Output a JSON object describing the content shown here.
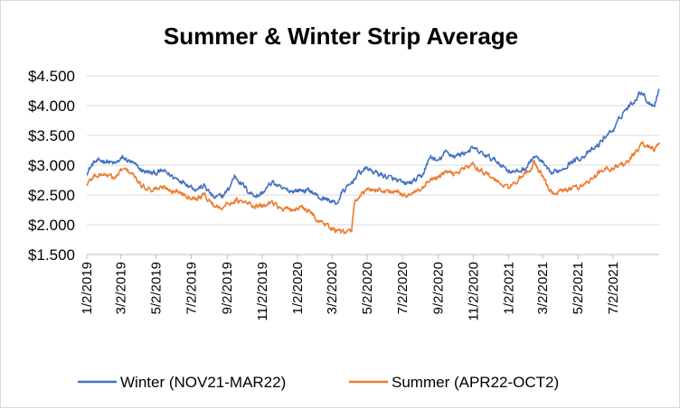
{
  "chart_data": {
    "type": "line",
    "title": "Summer & Winter Strip Average",
    "xlabel": "",
    "ylabel": "",
    "x_range": [
      "2019-01-02",
      "2021-09-20"
    ],
    "ylim": [
      1.5,
      4.5
    ],
    "y_ticks": [
      "$1.500",
      "$2.000",
      "$2.500",
      "$3.000",
      "$3.500",
      "$4.000",
      "$4.500"
    ],
    "x_ticks": [
      "1/2/2019",
      "3/2/2019",
      "5/2/2019",
      "7/2/2019",
      "9/2/2019",
      "11/2/2019",
      "1/2/2020",
      "3/2/2020",
      "5/2/2020",
      "7/2/2020",
      "9/2/2020",
      "11/2/2020",
      "1/2/2021",
      "3/2/2021",
      "5/2/2021",
      "7/2/2021"
    ],
    "grid": "horizontal",
    "legend_position": "bottom",
    "series": [
      {
        "name": "Winter (NOV21-MAR22)",
        "color": "#4472C4",
        "points": [
          [
            "2019-01-02",
            2.88
          ],
          [
            "2019-01-15",
            3.05
          ],
          [
            "2019-02-01",
            3.08
          ],
          [
            "2019-02-20",
            3.02
          ],
          [
            "2019-03-05",
            3.12
          ],
          [
            "2019-03-20",
            3.05
          ],
          [
            "2019-04-05",
            2.92
          ],
          [
            "2019-04-25",
            2.86
          ],
          [
            "2019-05-15",
            2.9
          ],
          [
            "2019-06-01",
            2.8
          ],
          [
            "2019-06-20",
            2.72
          ],
          [
            "2019-07-10",
            2.6
          ],
          [
            "2019-07-25",
            2.65
          ],
          [
            "2019-08-10",
            2.45
          ],
          [
            "2019-08-25",
            2.48
          ],
          [
            "2019-09-05",
            2.6
          ],
          [
            "2019-09-15",
            2.82
          ],
          [
            "2019-09-25",
            2.72
          ],
          [
            "2019-10-10",
            2.55
          ],
          [
            "2019-10-25",
            2.48
          ],
          [
            "2019-11-05",
            2.56
          ],
          [
            "2019-11-20",
            2.72
          ],
          [
            "2019-12-05",
            2.6
          ],
          [
            "2019-12-20",
            2.57
          ],
          [
            "2020-01-10",
            2.58
          ],
          [
            "2020-01-25",
            2.57
          ],
          [
            "2020-02-10",
            2.45
          ],
          [
            "2020-02-25",
            2.42
          ],
          [
            "2020-03-10",
            2.35
          ],
          [
            "2020-03-20",
            2.55
          ],
          [
            "2020-04-01",
            2.65
          ],
          [
            "2020-04-15",
            2.85
          ],
          [
            "2020-05-01",
            2.95
          ],
          [
            "2020-05-15",
            2.88
          ],
          [
            "2020-06-01",
            2.82
          ],
          [
            "2020-06-20",
            2.75
          ],
          [
            "2020-07-05",
            2.68
          ],
          [
            "2020-07-20",
            2.72
          ],
          [
            "2020-08-05",
            2.82
          ],
          [
            "2020-08-20",
            3.15
          ],
          [
            "2020-09-01",
            3.05
          ],
          [
            "2020-09-15",
            3.22
          ],
          [
            "2020-10-01",
            3.15
          ],
          [
            "2020-10-15",
            3.2
          ],
          [
            "2020-11-01",
            3.28
          ],
          [
            "2020-11-15",
            3.2
          ],
          [
            "2020-12-01",
            3.12
          ],
          [
            "2020-12-15",
            3.05
          ],
          [
            "2021-01-01",
            2.92
          ],
          [
            "2021-01-15",
            2.88
          ],
          [
            "2021-02-01",
            2.95
          ],
          [
            "2021-02-15",
            3.15
          ],
          [
            "2021-03-01",
            3.05
          ],
          [
            "2021-03-15",
            2.85
          ],
          [
            "2021-04-01",
            2.92
          ],
          [
            "2021-04-20",
            3.05
          ],
          [
            "2021-05-05",
            3.12
          ],
          [
            "2021-05-20",
            3.2
          ],
          [
            "2021-06-05",
            3.32
          ],
          [
            "2021-06-20",
            3.5
          ],
          [
            "2021-07-05",
            3.62
          ],
          [
            "2021-07-20",
            3.9
          ],
          [
            "2021-08-05",
            4.05
          ],
          [
            "2021-08-20",
            4.25
          ],
          [
            "2021-09-01",
            4.05
          ],
          [
            "2021-09-12",
            4.02
          ],
          [
            "2021-09-20",
            4.28
          ]
        ]
      },
      {
        "name": "Summer  (APR22-OCT2)",
        "color": "#ED7D31",
        "points": [
          [
            "2019-01-02",
            2.68
          ],
          [
            "2019-01-15",
            2.82
          ],
          [
            "2019-02-01",
            2.85
          ],
          [
            "2019-02-20",
            2.78
          ],
          [
            "2019-03-05",
            2.93
          ],
          [
            "2019-03-20",
            2.88
          ],
          [
            "2019-04-05",
            2.66
          ],
          [
            "2019-04-25",
            2.6
          ],
          [
            "2019-05-15",
            2.62
          ],
          [
            "2019-06-01",
            2.58
          ],
          [
            "2019-06-20",
            2.52
          ],
          [
            "2019-07-10",
            2.45
          ],
          [
            "2019-07-25",
            2.5
          ],
          [
            "2019-08-10",
            2.32
          ],
          [
            "2019-08-25",
            2.3
          ],
          [
            "2019-09-05",
            2.35
          ],
          [
            "2019-09-15",
            2.42
          ],
          [
            "2019-09-25",
            2.38
          ],
          [
            "2019-10-10",
            2.35
          ],
          [
            "2019-10-25",
            2.3
          ],
          [
            "2019-11-05",
            2.32
          ],
          [
            "2019-11-20",
            2.4
          ],
          [
            "2019-12-05",
            2.25
          ],
          [
            "2019-12-20",
            2.25
          ],
          [
            "2020-01-10",
            2.28
          ],
          [
            "2020-01-25",
            2.2
          ],
          [
            "2020-02-10",
            2.05
          ],
          [
            "2020-02-25",
            1.98
          ],
          [
            "2020-03-10",
            1.9
          ],
          [
            "2020-03-25",
            1.85
          ],
          [
            "2020-04-05",
            1.9
          ],
          [
            "2020-04-10",
            2.4
          ],
          [
            "2020-04-25",
            2.55
          ],
          [
            "2020-05-15",
            2.6
          ],
          [
            "2020-06-01",
            2.57
          ],
          [
            "2020-06-20",
            2.55
          ],
          [
            "2020-07-05",
            2.5
          ],
          [
            "2020-07-20",
            2.52
          ],
          [
            "2020-08-05",
            2.58
          ],
          [
            "2020-08-20",
            2.75
          ],
          [
            "2020-09-01",
            2.8
          ],
          [
            "2020-09-15",
            2.88
          ],
          [
            "2020-10-01",
            2.85
          ],
          [
            "2020-10-15",
            2.95
          ],
          [
            "2020-11-01",
            3.0
          ],
          [
            "2020-11-15",
            2.92
          ],
          [
            "2020-12-01",
            2.82
          ],
          [
            "2020-12-15",
            2.7
          ],
          [
            "2021-01-01",
            2.62
          ],
          [
            "2021-01-15",
            2.72
          ],
          [
            "2021-02-01",
            2.85
          ],
          [
            "2021-02-15",
            3.02
          ],
          [
            "2021-03-01",
            2.85
          ],
          [
            "2021-03-10",
            2.65
          ],
          [
            "2021-03-20",
            2.52
          ],
          [
            "2021-04-01",
            2.55
          ],
          [
            "2021-04-20",
            2.6
          ],
          [
            "2021-05-05",
            2.65
          ],
          [
            "2021-05-20",
            2.72
          ],
          [
            "2021-06-05",
            2.85
          ],
          [
            "2021-06-20",
            2.92
          ],
          [
            "2021-07-05",
            2.98
          ],
          [
            "2021-07-20",
            3.02
          ],
          [
            "2021-08-05",
            3.15
          ],
          [
            "2021-08-20",
            3.35
          ],
          [
            "2021-09-01",
            3.3
          ],
          [
            "2021-09-12",
            3.28
          ],
          [
            "2021-09-20",
            3.38
          ]
        ]
      }
    ]
  }
}
